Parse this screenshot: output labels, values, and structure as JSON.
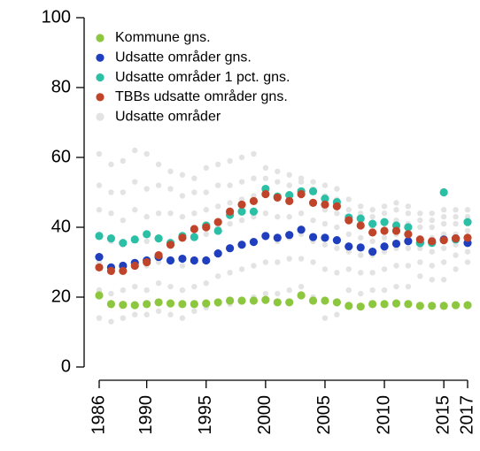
{
  "chart_data": {
    "type": "scatter",
    "x": [
      1986,
      1987,
      1988,
      1989,
      1990,
      1991,
      1992,
      1993,
      1994,
      1995,
      1996,
      1997,
      1998,
      1999,
      2000,
      2001,
      2002,
      2003,
      2004,
      2005,
      2006,
      2007,
      2008,
      2009,
      2010,
      2011,
      2012,
      2013,
      2014,
      2015,
      2016,
      2017
    ],
    "xlim": [
      1986,
      2017
    ],
    "xticks": [
      1986,
      1990,
      1995,
      2000,
      2005,
      2010,
      2015,
      2017
    ],
    "ylim": [
      0,
      100
    ],
    "yticks": [
      0,
      20,
      40,
      60,
      80,
      100
    ],
    "legend": "top-left",
    "series": [
      {
        "name": "Udsatte områder",
        "color": "#e3e3e3",
        "values": [
          [
            14,
            22,
            30,
            38,
            45,
            52,
            61
          ],
          [
            13,
            21,
            29,
            36,
            44,
            50,
            58
          ],
          [
            14,
            22,
            28,
            35,
            42,
            50,
            59
          ],
          [
            15,
            23,
            30,
            37,
            45,
            53,
            62
          ],
          [
            15,
            22,
            29,
            36,
            43,
            51,
            61
          ],
          [
            16,
            24,
            30,
            37,
            44,
            52,
            58
          ],
          [
            15,
            23,
            30,
            36,
            44,
            51,
            56
          ],
          [
            14,
            22,
            29,
            37,
            43,
            49,
            55
          ],
          [
            16,
            23,
            30,
            37,
            44,
            50,
            54
          ],
          [
            17,
            24,
            31,
            38,
            45,
            50,
            57
          ],
          [
            18,
            26,
            33,
            40,
            46,
            52,
            58
          ],
          [
            18,
            27,
            34,
            41,
            47,
            52,
            59
          ],
          [
            19,
            28,
            35,
            42,
            48,
            53,
            60
          ],
          [
            20,
            29,
            36,
            43,
            49,
            54,
            61
          ],
          [
            21,
            30,
            37,
            44,
            50,
            54,
            57
          ],
          [
            21,
            30,
            36,
            43,
            48,
            53,
            56
          ],
          [
            22,
            31,
            37,
            43,
            48,
            52,
            55
          ],
          [
            23,
            31,
            38,
            44,
            49,
            53,
            54
          ],
          [
            20,
            30,
            36,
            42,
            47,
            51,
            53
          ],
          [
            14,
            28,
            35,
            41,
            45,
            49,
            52
          ],
          [
            15,
            27,
            34,
            40,
            44,
            48,
            51
          ],
          [
            22,
            28,
            33,
            38,
            42,
            45,
            48
          ],
          [
            21,
            27,
            32,
            37,
            41,
            44,
            46
          ],
          [
            22,
            27,
            32,
            36,
            40,
            43,
            45
          ],
          [
            22,
            28,
            33,
            37,
            41,
            44,
            46
          ],
          [
            23,
            29,
            34,
            38,
            42,
            45,
            47
          ],
          [
            23,
            29,
            34,
            38,
            41,
            44,
            46
          ],
          [
            26,
            30,
            34,
            37,
            40,
            42,
            44
          ],
          [
            25,
            29,
            33,
            37,
            40,
            42,
            44
          ],
          [
            25,
            30,
            34,
            38,
            41,
            43,
            45
          ],
          [
            28,
            32,
            35,
            38,
            41,
            43,
            45
          ],
          [
            30,
            33,
            36,
            39,
            41,
            43,
            45
          ]
        ]
      },
      {
        "name": "Kommune gns.",
        "color": "#8dc63f",
        "values": [
          20.5,
          18,
          17.8,
          17.7,
          18,
          18.5,
          18.2,
          18,
          18,
          18.2,
          18.5,
          19,
          19,
          19,
          19.2,
          18.5,
          18.5,
          20.5,
          19,
          19,
          18.5,
          17.5,
          17.3,
          18,
          18,
          18.2,
          18,
          17.5,
          17.5,
          17.5,
          17.7,
          17.7
        ]
      },
      {
        "name": "Udsatte områder gns.",
        "color": "#1f3fbf",
        "values": [
          31.5,
          28.5,
          29,
          29.8,
          30.5,
          31.5,
          30.5,
          31,
          30.5,
          30.5,
          32.5,
          34,
          35,
          35.8,
          37.5,
          37,
          37.8,
          39.3,
          37.2,
          37,
          36.3,
          34.5,
          34.2,
          33,
          34.5,
          35.3,
          36,
          35.5,
          35.7,
          36.5,
          36.8,
          35.5
        ]
      },
      {
        "name": "Udsatte områder 1 pct. gns.",
        "color": "#2bbfa6",
        "values": [
          37.5,
          36.8,
          35.5,
          36.5,
          38,
          36.8,
          35.5,
          37.5,
          37.2,
          40.5,
          39,
          43.5,
          44.5,
          44.5,
          51,
          48.8,
          49.2,
          50.3,
          50.3,
          48.2,
          47.2,
          42.8,
          42.5,
          41,
          41.5,
          40.5,
          40,
          35.5,
          35.5,
          50,
          36.5,
          41.5
        ]
      },
      {
        "name": "TBBs udsatte områder gns.",
        "color": "#c0442a",
        "values": [
          28.5,
          27.5,
          27.5,
          29,
          30,
          32,
          35,
          37,
          39.5,
          40,
          41.5,
          44.5,
          46.5,
          47.5,
          49.5,
          48.5,
          47.5,
          49.5,
          47,
          46.5,
          46,
          42,
          40.5,
          38.5,
          39,
          39,
          38,
          36.5,
          36,
          36.3,
          36.8,
          37
        ]
      }
    ],
    "legend_order": [
      1,
      2,
      3,
      4,
      0
    ]
  }
}
